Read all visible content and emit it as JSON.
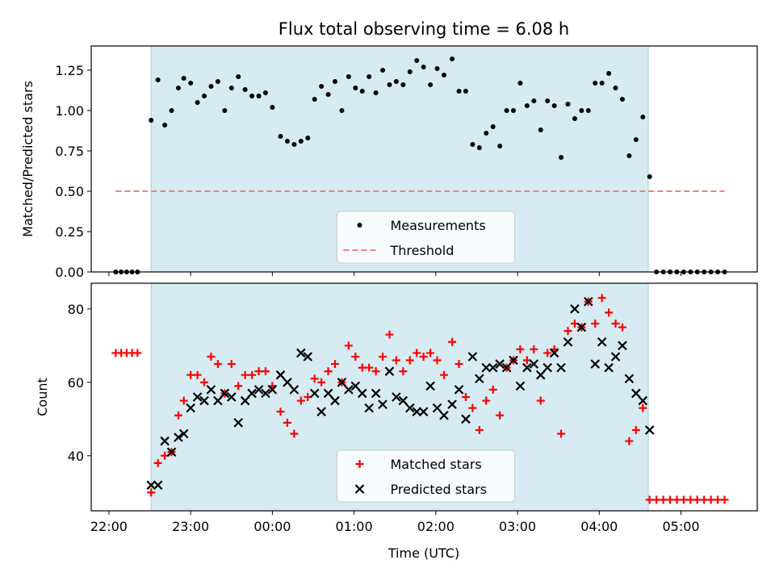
{
  "chart_data": [
    {
      "type": "scatter",
      "title": "Flux total observing time = 6.08 h",
      "xlabel": "",
      "ylabel": "Matched/Predicted stars",
      "xlim": [
        "21:47",
        "05:56"
      ],
      "ylim": [
        0,
        1.4
      ],
      "xticks": [
        "22:00",
        "23:00",
        "00:00",
        "01:00",
        "02:00",
        "03:00",
        "04:00",
        "05:00"
      ],
      "yticks": [
        "0.00",
        "0.25",
        "0.50",
        "0.75",
        "1.00",
        "1.25"
      ],
      "shaded_span": [
        "22:31",
        "04:36"
      ],
      "legend_position": "lower center",
      "series": [
        {
          "name": "Measurements",
          "marker": "dot",
          "color": "#000000",
          "points": [
            [
              "22:05",
              0
            ],
            [
              "22:09",
              0
            ],
            [
              "22:13",
              0
            ],
            [
              "22:17",
              0
            ],
            [
              "22:21",
              0
            ],
            [
              "22:31",
              0.94
            ],
            [
              "22:36",
              1.19
            ],
            [
              "22:41",
              0.91
            ],
            [
              "22:46",
              1.0
            ],
            [
              "22:51",
              1.14
            ],
            [
              "22:55",
              1.2
            ],
            [
              "23:00",
              1.17
            ],
            [
              "23:05",
              1.05
            ],
            [
              "23:10",
              1.09
            ],
            [
              "23:15",
              1.15
            ],
            [
              "23:20",
              1.18
            ],
            [
              "23:25",
              1.0
            ],
            [
              "23:30",
              1.14
            ],
            [
              "23:35",
              1.21
            ],
            [
              "23:40",
              1.13
            ],
            [
              "23:45",
              1.09
            ],
            [
              "23:50",
              1.09
            ],
            [
              "23:55",
              1.11
            ],
            [
              "00:00",
              1.02
            ],
            [
              "00:06",
              0.84
            ],
            [
              "00:11",
              0.81
            ],
            [
              "00:16",
              0.79
            ],
            [
              "00:21",
              0.81
            ],
            [
              "00:26",
              0.83
            ],
            [
              "00:31",
              1.07
            ],
            [
              "00:36",
              1.15
            ],
            [
              "00:41",
              1.1
            ],
            [
              "00:46",
              1.18
            ],
            [
              "00:51",
              1.0
            ],
            [
              "00:56",
              1.21
            ],
            [
              "01:01",
              1.14
            ],
            [
              "01:06",
              1.12
            ],
            [
              "01:11",
              1.21
            ],
            [
              "01:16",
              1.11
            ],
            [
              "01:21",
              1.25
            ],
            [
              "01:26",
              1.16
            ],
            [
              "01:31",
              1.18
            ],
            [
              "01:36",
              1.16
            ],
            [
              "01:41",
              1.24
            ],
            [
              "01:46",
              1.31
            ],
            [
              "01:51",
              1.27
            ],
            [
              "01:56",
              1.16
            ],
            [
              "02:01",
              1.26
            ],
            [
              "02:06",
              1.22
            ],
            [
              "02:12",
              1.32
            ],
            [
              "02:17",
              1.12
            ],
            [
              "02:22",
              1.12
            ],
            [
              "02:27",
              0.79
            ],
            [
              "02:32",
              0.77
            ],
            [
              "02:37",
              0.86
            ],
            [
              "02:42",
              0.9
            ],
            [
              "02:47",
              0.78
            ],
            [
              "02:52",
              1.0
            ],
            [
              "02:57",
              1.0
            ],
            [
              "03:02",
              1.17
            ],
            [
              "03:07",
              1.03
            ],
            [
              "03:12",
              1.06
            ],
            [
              "03:17",
              0.88
            ],
            [
              "03:22",
              1.06
            ],
            [
              "03:27",
              1.03
            ],
            [
              "03:32",
              0.71
            ],
            [
              "03:37",
              1.04
            ],
            [
              "03:42",
              0.95
            ],
            [
              "03:47",
              1.0
            ],
            [
              "03:52",
              1.0
            ],
            [
              "03:57",
              1.17
            ],
            [
              "04:02",
              1.17
            ],
            [
              "04:07",
              1.23
            ],
            [
              "04:12",
              1.14
            ],
            [
              "04:17",
              1.07
            ],
            [
              "04:22",
              0.72
            ],
            [
              "04:27",
              0.82
            ],
            [
              "04:32",
              0.96
            ],
            [
              "04:37",
              0.59
            ],
            [
              "04:42",
              0
            ],
            [
              "04:47",
              0
            ],
            [
              "04:52",
              0
            ],
            [
              "04:57",
              0
            ],
            [
              "05:02",
              0
            ],
            [
              "05:07",
              0
            ],
            [
              "05:12",
              0
            ],
            [
              "05:17",
              0
            ],
            [
              "05:22",
              0
            ],
            [
              "05:27",
              0
            ],
            [
              "05:32",
              0
            ]
          ]
        },
        {
          "name": "Threshold",
          "style": "dashed-line",
          "color": "#f08080",
          "points": [
            [
              "22:05",
              0.5
            ],
            [
              "05:32",
              0.5
            ]
          ]
        }
      ]
    },
    {
      "type": "scatter",
      "title": "",
      "xlabel": "Time (UTC)",
      "ylabel": "Count",
      "xlim": [
        "21:47",
        "05:56"
      ],
      "ylim": [
        25,
        87
      ],
      "xticks": [
        "22:00",
        "23:00",
        "00:00",
        "01:00",
        "02:00",
        "03:00",
        "04:00",
        "05:00"
      ],
      "yticks": [
        "40",
        "60",
        "80"
      ],
      "shaded_span": [
        "22:31",
        "04:36"
      ],
      "legend_position": "lower center",
      "series": [
        {
          "name": "Matched stars",
          "marker": "plus",
          "color": "#ff0000",
          "points": [
            [
              "22:05",
              68
            ],
            [
              "22:09",
              68
            ],
            [
              "22:13",
              68
            ],
            [
              "22:17",
              68
            ],
            [
              "22:21",
              68
            ],
            [
              "22:31",
              30
            ],
            [
              "22:36",
              38
            ],
            [
              "22:41",
              40
            ],
            [
              "22:46",
              41
            ],
            [
              "22:51",
              51
            ],
            [
              "22:55",
              55
            ],
            [
              "23:00",
              62
            ],
            [
              "23:05",
              62
            ],
            [
              "23:10",
              60
            ],
            [
              "23:15",
              67
            ],
            [
              "23:20",
              65
            ],
            [
              "23:25",
              57
            ],
            [
              "23:30",
              65
            ],
            [
              "23:35",
              59
            ],
            [
              "23:40",
              62
            ],
            [
              "23:45",
              62
            ],
            [
              "23:50",
              63
            ],
            [
              "23:55",
              63
            ],
            [
              "00:00",
              59
            ],
            [
              "00:06",
              52
            ],
            [
              "00:11",
              49
            ],
            [
              "00:16",
              46
            ],
            [
              "00:21",
              55
            ],
            [
              "00:26",
              56
            ],
            [
              "00:31",
              61
            ],
            [
              "00:36",
              60
            ],
            [
              "00:41",
              63
            ],
            [
              "00:46",
              65
            ],
            [
              "00:51",
              60
            ],
            [
              "00:56",
              70
            ],
            [
              "01:01",
              67
            ],
            [
              "01:06",
              64
            ],
            [
              "01:11",
              64
            ],
            [
              "01:16",
              63
            ],
            [
              "01:21",
              67
            ],
            [
              "01:26",
              73
            ],
            [
              "01:31",
              66
            ],
            [
              "01:36",
              63
            ],
            [
              "01:41",
              66
            ],
            [
              "01:46",
              68
            ],
            [
              "01:51",
              67
            ],
            [
              "01:56",
              68
            ],
            [
              "02:01",
              66
            ],
            [
              "02:06",
              62
            ],
            [
              "02:12",
              71
            ],
            [
              "02:17",
              65
            ],
            [
              "02:22",
              56
            ],
            [
              "02:27",
              53
            ],
            [
              "02:32",
              47
            ],
            [
              "02:37",
              55
            ],
            [
              "02:42",
              58
            ],
            [
              "02:47",
              51
            ],
            [
              "02:52",
              64
            ],
            [
              "02:57",
              66
            ],
            [
              "03:02",
              69
            ],
            [
              "03:07",
              66
            ],
            [
              "03:12",
              69
            ],
            [
              "03:17",
              55
            ],
            [
              "03:22",
              68
            ],
            [
              "03:27",
              69
            ],
            [
              "03:32",
              46
            ],
            [
              "03:37",
              74
            ],
            [
              "03:42",
              76
            ],
            [
              "03:47",
              75
            ],
            [
              "03:52",
              82
            ],
            [
              "03:57",
              76
            ],
            [
              "04:02",
              83
            ],
            [
              "04:07",
              79
            ],
            [
              "04:12",
              76
            ],
            [
              "04:17",
              75
            ],
            [
              "04:22",
              44
            ],
            [
              "04:27",
              47
            ],
            [
              "04:32",
              53
            ],
            [
              "04:37",
              28
            ],
            [
              "04:42",
              28
            ],
            [
              "04:47",
              28
            ],
            [
              "04:52",
              28
            ],
            [
              "04:57",
              28
            ],
            [
              "05:02",
              28
            ],
            [
              "05:07",
              28
            ],
            [
              "05:12",
              28
            ],
            [
              "05:17",
              28
            ],
            [
              "05:22",
              28
            ],
            [
              "05:27",
              28
            ],
            [
              "05:32",
              28
            ]
          ]
        },
        {
          "name": "Predicted stars",
          "marker": "x",
          "color": "#000000",
          "points": [
            [
              "22:31",
              32
            ],
            [
              "22:36",
              32
            ],
            [
              "22:41",
              44
            ],
            [
              "22:46",
              41
            ],
            [
              "22:51",
              45
            ],
            [
              "22:55",
              46
            ],
            [
              "23:00",
              53
            ],
            [
              "23:05",
              56
            ],
            [
              "23:10",
              55
            ],
            [
              "23:15",
              58
            ],
            [
              "23:20",
              55
            ],
            [
              "23:25",
              57
            ],
            [
              "23:30",
              56
            ],
            [
              "23:35",
              49
            ],
            [
              "23:40",
              55
            ],
            [
              "23:45",
              57
            ],
            [
              "23:50",
              58
            ],
            [
              "23:55",
              57
            ],
            [
              "00:00",
              58
            ],
            [
              "00:06",
              62
            ],
            [
              "00:11",
              60
            ],
            [
              "00:16",
              58
            ],
            [
              "00:21",
              68
            ],
            [
              "00:26",
              67
            ],
            [
              "00:31",
              57
            ],
            [
              "00:36",
              52
            ],
            [
              "00:41",
              57
            ],
            [
              "00:46",
              55
            ],
            [
              "00:51",
              60
            ],
            [
              "00:56",
              58
            ],
            [
              "01:01",
              59
            ],
            [
              "01:06",
              57
            ],
            [
              "01:11",
              53
            ],
            [
              "01:16",
              57
            ],
            [
              "01:21",
              54
            ],
            [
              "01:26",
              63
            ],
            [
              "01:31",
              56
            ],
            [
              "01:36",
              55
            ],
            [
              "01:41",
              53
            ],
            [
              "01:46",
              52
            ],
            [
              "01:51",
              52
            ],
            [
              "01:56",
              59
            ],
            [
              "02:01",
              53
            ],
            [
              "02:06",
              51
            ],
            [
              "02:12",
              54
            ],
            [
              "02:17",
              58
            ],
            [
              "02:22",
              50
            ],
            [
              "02:27",
              67
            ],
            [
              "02:32",
              61
            ],
            [
              "02:37",
              64
            ],
            [
              "02:42",
              64
            ],
            [
              "02:47",
              65
            ],
            [
              "02:52",
              64
            ],
            [
              "02:57",
              66
            ],
            [
              "03:02",
              59
            ],
            [
              "03:07",
              64
            ],
            [
              "03:12",
              65
            ],
            [
              "03:17",
              62
            ],
            [
              "03:22",
              64
            ],
            [
              "03:27",
              68
            ],
            [
              "03:32",
              64
            ],
            [
              "03:37",
              71
            ],
            [
              "03:42",
              80
            ],
            [
              "03:47",
              75
            ],
            [
              "03:52",
              82
            ],
            [
              "03:57",
              65
            ],
            [
              "04:02",
              71
            ],
            [
              "04:07",
              64
            ],
            [
              "04:12",
              67
            ],
            [
              "04:17",
              70
            ],
            [
              "04:22",
              61
            ],
            [
              "04:27",
              57
            ],
            [
              "04:32",
              55
            ],
            [
              "04:37",
              47
            ]
          ]
        }
      ]
    }
  ]
}
